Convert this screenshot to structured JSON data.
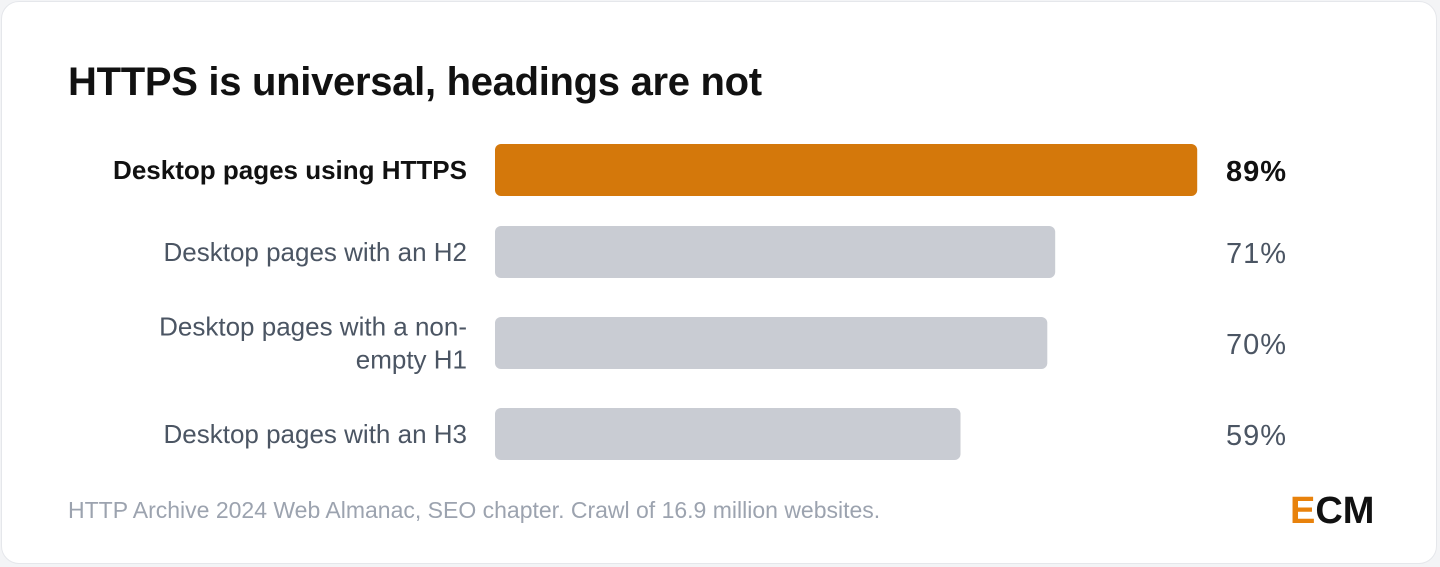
{
  "title": "HTTPS is universal, headings are not",
  "footnote": "HTTP Archive 2024 Web Almanac, SEO chapter. Crawl of 16.9 million websites.",
  "logo": {
    "e": "E",
    "cm": "CM"
  },
  "colors": {
    "highlight": "#d4780b",
    "bar": "#c9ccd3",
    "highlight_text": "#111111",
    "text": "#4b5563"
  },
  "chart_data": {
    "type": "bar",
    "orientation": "horizontal",
    "categories": [
      [
        "Desktop pages using HTTPS"
      ],
      [
        "Desktop pages with an H2"
      ],
      [
        "Desktop pages with a non-",
        "empty H1"
      ],
      [
        "Desktop pages with an H3"
      ]
    ],
    "values": [
      89,
      71,
      70,
      59
    ],
    "value_labels": [
      "89%",
      "71%",
      "70%",
      "59%"
    ],
    "highlight_index": 0,
    "xlim": [
      0,
      100
    ],
    "grid": false,
    "legend": "none"
  }
}
